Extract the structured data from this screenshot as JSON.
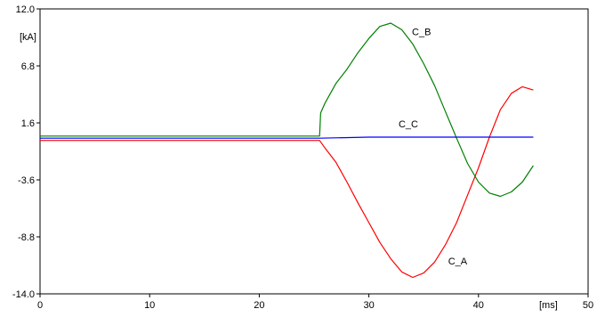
{
  "chart_data": {
    "type": "line",
    "title": "",
    "xlabel": "[ms]",
    "ylabel": "[kA]",
    "xlim": [
      0,
      50
    ],
    "ylim": [
      -14.0,
      12.0
    ],
    "grid": false,
    "x_ticks": [
      0,
      10,
      20,
      30,
      40,
      50
    ],
    "x_tick_labels": [
      "0",
      "10",
      "20",
      "30",
      "40",
      "50"
    ],
    "y_ticks": [
      12.0,
      6.8,
      1.6,
      -3.6,
      -8.8,
      -14.0
    ],
    "y_tick_labels": [
      "12.0",
      "6.8",
      "1.6",
      "-3.6",
      "-8.8",
      "-14.0"
    ],
    "colors": {
      "C_A": "#ff0000",
      "C_B": "#008000",
      "C_C": "#0000ff",
      "frame": "#000000"
    },
    "series": [
      {
        "name": "C_A",
        "color": "#ff0000",
        "x": [
          0,
          25.5,
          26,
          27,
          28,
          29,
          30,
          31,
          32,
          33,
          34,
          35,
          36,
          37,
          38,
          39,
          40,
          41,
          42,
          43,
          44,
          45
        ],
        "y": [
          0,
          0,
          -0.7,
          -2.0,
          -3.8,
          -5.7,
          -7.5,
          -9.3,
          -10.8,
          -12.0,
          -12.5,
          -12.1,
          -11.1,
          -9.5,
          -7.5,
          -5.0,
          -2.5,
          0.3,
          2.8,
          4.3,
          4.9,
          4.6
        ]
      },
      {
        "name": "C_B",
        "color": "#008000",
        "x": [
          0,
          25.5,
          25.6,
          26,
          27,
          28,
          29,
          30,
          31,
          32,
          33,
          34,
          35,
          36,
          37,
          38,
          39,
          40,
          41,
          42,
          43,
          44,
          45
        ],
        "y": [
          0.4,
          0.4,
          2.5,
          3.4,
          5.2,
          6.5,
          8.0,
          9.3,
          10.4,
          10.7,
          10.1,
          8.8,
          7.0,
          5.0,
          2.6,
          0.2,
          -2.1,
          -3.8,
          -4.8,
          -5.1,
          -4.7,
          -3.8,
          -2.3
        ]
      },
      {
        "name": "C_C",
        "color": "#0000ff",
        "x": [
          0,
          25.5,
          30,
          35,
          40,
          45
        ],
        "y": [
          0.2,
          0.2,
          0.3,
          0.3,
          0.3,
          0.3
        ]
      }
    ],
    "annotations": [
      {
        "text": "C_B",
        "x": 34.8,
        "y": 9.6,
        "series": "C_B"
      },
      {
        "text": "C_C",
        "x": 33.6,
        "y": 1.2,
        "series": "C_C"
      },
      {
        "text": "C_A",
        "x": 38.1,
        "y": -11.3,
        "series": "C_A"
      }
    ]
  }
}
